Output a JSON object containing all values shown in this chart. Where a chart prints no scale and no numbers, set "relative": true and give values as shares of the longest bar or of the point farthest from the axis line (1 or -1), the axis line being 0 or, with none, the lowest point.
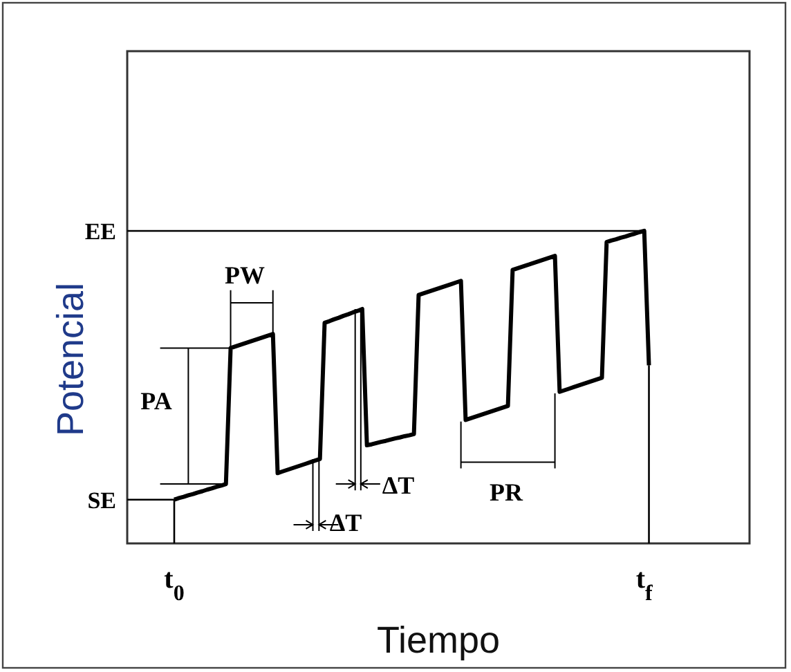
{
  "chart_data": {
    "type": "line",
    "xlabel": "Tiempo",
    "ylabel": "Potencial",
    "relative": true,
    "categories": [
      "t$_{0}$",
      null,
      null,
      null,
      null,
      null,
      null,
      null,
      null,
      null,
      null,
      null,
      null,
      null,
      null,
      null,
      null,
      null,
      null,
      null,
      null,
      null,
      null,
      null,
      null,
      null,
      null,
      null,
      null,
      null,
      null,
      null,
      null,
      null,
      null,
      null,
      null,
      null,
      null,
      null,
      null,
      null,
      null,
      null,
      null,
      null,
      null,
      null,
      null,
      null,
      null,
      null,
      null,
      null,
      null,
      null,
      null,
      null,
      null,
      null,
      null,
      null,
      null,
      null,
      null,
      null,
      null,
      null,
      null,
      null,
      null,
      null,
      null,
      null,
      null,
      null,
      null,
      null,
      null,
      null,
      null,
      null,
      null,
      null,
      null,
      null,
      null,
      null,
      null,
      null,
      null,
      null,
      null,
      null,
      null,
      null,
      null,
      null,
      null,
      null,
      "t$_{f}$",
      null
    ],
    "series": [
      {
        "color": "#000000",
        "values": [
          0.14,
          0.145,
          0.149,
          0.154,
          0.158,
          0.163,
          0.167,
          0.172,
          0.176,
          0.181,
          0.185,
          0.19,
          0.625,
          0.63,
          0.635,
          0.64,
          0.645,
          0.65,
          0.655,
          0.66,
          0.665,
          0.67,
          0.225,
          0.23,
          0.235,
          0.24,
          0.245,
          0.25,
          0.255,
          0.26,
          0.265,
          0.27,
          0.706,
          0.711,
          0.717,
          0.722,
          0.728,
          0.733,
          0.739,
          0.744,
          0.75,
          0.314,
          0.317,
          0.321,
          0.325,
          0.328,
          0.332,
          0.336,
          0.339,
          0.343,
          0.346,
          0.35,
          0.795,
          0.8,
          0.805,
          0.81,
          0.815,
          0.82,
          0.825,
          0.83,
          0.835,
          0.84,
          0.395,
          0.4,
          0.405,
          0.41,
          0.415,
          0.42,
          0.425,
          0.43,
          0.435,
          0.44,
          0.875,
          0.88,
          0.885,
          0.89,
          0.895,
          0.9,
          0.905,
          0.91,
          0.915,
          0.92,
          0.485,
          0.49,
          0.495,
          0.5,
          0.505,
          0.51,
          0.515,
          0.52,
          0.525,
          0.53,
          0.964,
          0.969,
          0.973,
          0.978,
          0.982,
          0.987,
          0.991,
          0.996,
          1.0,
          0.57
        ]
      }
    ],
    "ref_lines": [
      {
        "axis": "y",
        "value": 0.14,
        "label": "SE"
      },
      {
        "axis": "y",
        "value": 1,
        "label": "EE"
      }
    ],
    "annotations": [
      "PA",
      "PW",
      "ΔT",
      "ΔT",
      "PR"
    ],
    "marker": "none",
    "line_style": "solid"
  }
}
